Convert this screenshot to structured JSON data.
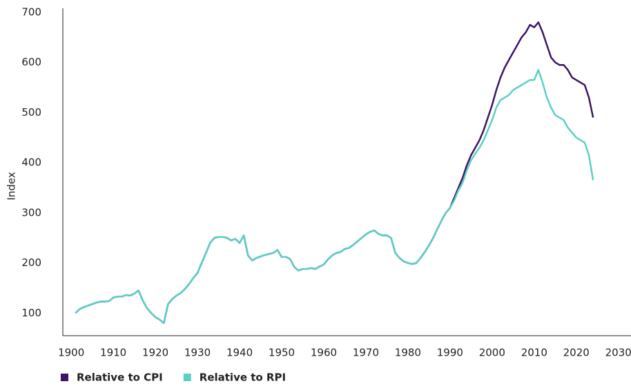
{
  "chart_data": {
    "type": "line",
    "y_label": "Index",
    "x": [
      1901,
      1902,
      1903,
      1904,
      1905,
      1906,
      1907,
      1908,
      1909,
      1910,
      1911,
      1912,
      1913,
      1914,
      1915,
      1916,
      1917,
      1918,
      1919,
      1920,
      1921,
      1922,
      1923,
      1924,
      1925,
      1926,
      1927,
      1928,
      1929,
      1930,
      1931,
      1932,
      1933,
      1934,
      1935,
      1936,
      1937,
      1938,
      1939,
      1940,
      1941,
      1942,
      1943,
      1944,
      1945,
      1946,
      1947,
      1948,
      1949,
      1950,
      1951,
      1952,
      1953,
      1954,
      1955,
      1956,
      1957,
      1958,
      1959,
      1960,
      1961,
      1962,
      1963,
      1964,
      1965,
      1966,
      1967,
      1968,
      1969,
      1970,
      1971,
      1972,
      1973,
      1974,
      1975,
      1976,
      1977,
      1978,
      1979,
      1980,
      1981,
      1982,
      1983,
      1984,
      1985,
      1986,
      1987,
      1988,
      1989,
      1990,
      1991,
      1992,
      1993,
      1994,
      1995,
      1996,
      1997,
      1998,
      1999,
      2000,
      2001,
      2002,
      2003,
      2004,
      2005,
      2006,
      2007,
      2008,
      2009,
      2010,
      2011,
      2012,
      2013,
      2014,
      2015,
      2016,
      2017,
      2018,
      2019,
      2020,
      2021,
      2022,
      2023,
      2024
    ],
    "series": [
      {
        "name": "Relative to CPI",
        "color": "#3d1466",
        "values": [
          100,
          108,
          112,
          115,
          118,
          121,
          123,
          123,
          124,
          131,
          133,
          133,
          136,
          135,
          139,
          145,
          125,
          110,
          100,
          92,
          87,
          80,
          118,
          128,
          135,
          140,
          148,
          158,
          170,
          180,
          200,
          220,
          240,
          250,
          252,
          252,
          250,
          245,
          248,
          240,
          255,
          215,
          205,
          210,
          213,
          216,
          218,
          220,
          226,
          212,
          212,
          208,
          192,
          185,
          188,
          188,
          190,
          188,
          193,
          197,
          207,
          215,
          220,
          222,
          228,
          230,
          236,
          243,
          250,
          257,
          262,
          265,
          258,
          255,
          255,
          250,
          220,
          210,
          203,
          200,
          198,
          200,
          210,
          222,
          235,
          250,
          268,
          285,
          300,
          310,
          330,
          350,
          370,
          395,
          415,
          430,
          445,
          465,
          490,
          515,
          545,
          570,
          590,
          605,
          620,
          635,
          650,
          660,
          675,
          670,
          680,
          660,
          635,
          610,
          600,
          595,
          595,
          585,
          570,
          565,
          560,
          555,
          530,
          490
        ]
      },
      {
        "name": "Relative to RPI",
        "color": "#5ccfc4",
        "values": [
          100,
          108,
          112,
          115,
          118,
          121,
          123,
          123,
          124,
          131,
          133,
          133,
          136,
          135,
          139,
          145,
          125,
          110,
          100,
          92,
          87,
          80,
          118,
          128,
          135,
          140,
          148,
          158,
          170,
          180,
          200,
          220,
          240,
          250,
          252,
          252,
          250,
          245,
          248,
          240,
          255,
          215,
          205,
          210,
          213,
          216,
          218,
          220,
          226,
          212,
          212,
          208,
          192,
          185,
          188,
          188,
          190,
          188,
          193,
          197,
          207,
          215,
          220,
          222,
          228,
          230,
          236,
          243,
          250,
          257,
          262,
          265,
          258,
          255,
          255,
          250,
          220,
          210,
          203,
          200,
          198,
          200,
          210,
          222,
          235,
          250,
          268,
          285,
          300,
          310,
          325,
          345,
          360,
          385,
          405,
          418,
          430,
          445,
          465,
          485,
          510,
          525,
          530,
          535,
          545,
          550,
          555,
          560,
          565,
          565,
          585,
          560,
          530,
          510,
          495,
          490,
          485,
          470,
          460,
          450,
          445,
          440,
          415,
          365
        ]
      }
    ],
    "xlim": [
      1898,
      2033
    ],
    "xticks": [
      1900,
      1910,
      1920,
      1930,
      1940,
      1950,
      1960,
      1970,
      1980,
      1990,
      2000,
      2010,
      2020,
      2030
    ],
    "ylim": [
      55,
      708
    ],
    "yticks": [
      100,
      200,
      300,
      400,
      500,
      600,
      700
    ],
    "grid": false,
    "legend": "bottom-left"
  }
}
